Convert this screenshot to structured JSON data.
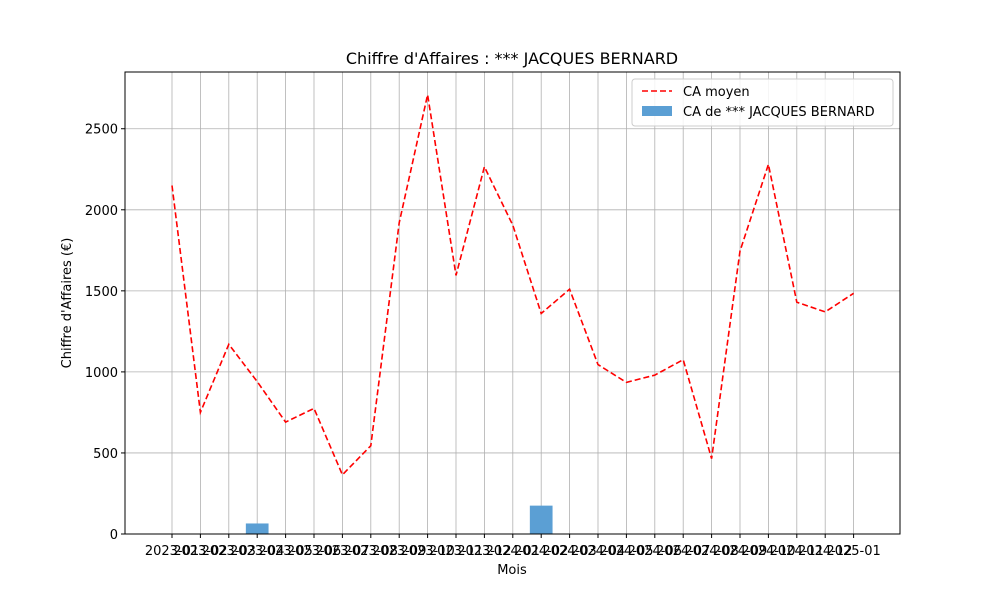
{
  "chart_data": {
    "type": "bar+line",
    "title": "Chiffre d'Affaires : *** JACQUES BERNARD",
    "xlabel": "Mois",
    "ylabel": "Chiffre d'Affaires (€)",
    "ylim": [
      0,
      2850
    ],
    "yticks": [
      0,
      500,
      1000,
      1500,
      2000,
      2500
    ],
    "grid": true,
    "legend_position": "top-right",
    "categories": [
      "2023-01",
      "2023-02",
      "2023-03",
      "2023-04",
      "2023-05",
      "2023-06",
      "2023-07",
      "2023-08",
      "2023-09",
      "2023-10",
      "2023-11",
      "2023-12",
      "2024-01",
      "2024-02",
      "2024-03",
      "2024-04",
      "2024-05",
      "2024-06",
      "2024-07",
      "2024-08",
      "2024-09",
      "2024-10",
      "2024-11",
      "2024-12",
      "2025-01"
    ],
    "series": [
      {
        "name": "CA moyen",
        "kind": "line",
        "style": "dashed",
        "color": "#ff0000",
        "values": [
          2150,
          750,
          1170,
          940,
          690,
          775,
          365,
          545,
          1920,
          2710,
          1595,
          2265,
          1905,
          1360,
          1510,
          1045,
          935,
          980,
          1075,
          465,
          1745,
          2280,
          1430,
          1370,
          1485
        ]
      },
      {
        "name": "CA de *** JACQUES BERNARD",
        "kind": "bar",
        "color": "#5b9fd4",
        "values": [
          0,
          0,
          0,
          65,
          0,
          0,
          0,
          0,
          0,
          0,
          0,
          0,
          0,
          175,
          0,
          0,
          0,
          0,
          0,
          0,
          0,
          0,
          0,
          0,
          0
        ]
      }
    ]
  }
}
